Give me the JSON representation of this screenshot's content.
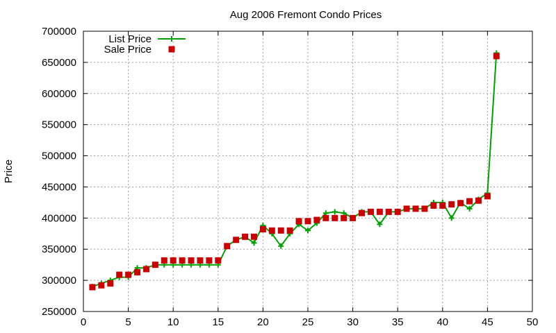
{
  "chart_data": {
    "type": "line",
    "title": "Aug 2006 Fremont Condo Prices",
    "xlabel": "",
    "ylabel": "Price",
    "xlim": [
      0,
      50
    ],
    "ylim": [
      250000,
      700000
    ],
    "x_ticks": [
      0,
      5,
      10,
      15,
      20,
      25,
      30,
      35,
      40,
      45,
      50
    ],
    "y_ticks": [
      250000,
      300000,
      350000,
      400000,
      450000,
      500000,
      550000,
      600000,
      650000,
      700000
    ],
    "grid": true,
    "legend": "top-left",
    "x": [
      1,
      2,
      3,
      4,
      5,
      6,
      7,
      8,
      9,
      10,
      11,
      12,
      13,
      14,
      15,
      16,
      17,
      18,
      19,
      20,
      21,
      22,
      23,
      24,
      25,
      26,
      27,
      28,
      29,
      30,
      31,
      32,
      33,
      34,
      35,
      36,
      37,
      38,
      39,
      40,
      41,
      42,
      43,
      44,
      45,
      46
    ],
    "series": [
      {
        "name": "List Price",
        "style": "line-with-plus-markers",
        "color": "#00a000",
        "values": [
          290000,
          295000,
          300000,
          305000,
          305000,
          320000,
          320000,
          325000,
          325000,
          325000,
          325000,
          325000,
          325000,
          325000,
          325000,
          355000,
          365000,
          370000,
          360000,
          388000,
          375000,
          355000,
          375000,
          390000,
          380000,
          392000,
          408000,
          410000,
          408000,
          400000,
          410000,
          410000,
          390000,
          410000,
          410000,
          415000,
          415000,
          415000,
          425000,
          425000,
          400000,
          425000,
          415000,
          430000,
          440000,
          665000
        ]
      },
      {
        "name": "Sale Price",
        "style": "square-markers",
        "color": "#cc0000",
        "values": [
          289000,
          292000,
          295000,
          309000,
          309000,
          313000,
          318000,
          325000,
          332000,
          332000,
          332000,
          332000,
          332000,
          332000,
          332000,
          355000,
          365000,
          370000,
          370000,
          382000,
          380000,
          380000,
          380000,
          395000,
          395000,
          397000,
          400000,
          400000,
          400000,
          400000,
          408000,
          410000,
          410000,
          410000,
          410000,
          415000,
          415000,
          415000,
          420000,
          420000,
          422000,
          424000,
          427000,
          428000,
          435000,
          660000
        ]
      }
    ]
  }
}
